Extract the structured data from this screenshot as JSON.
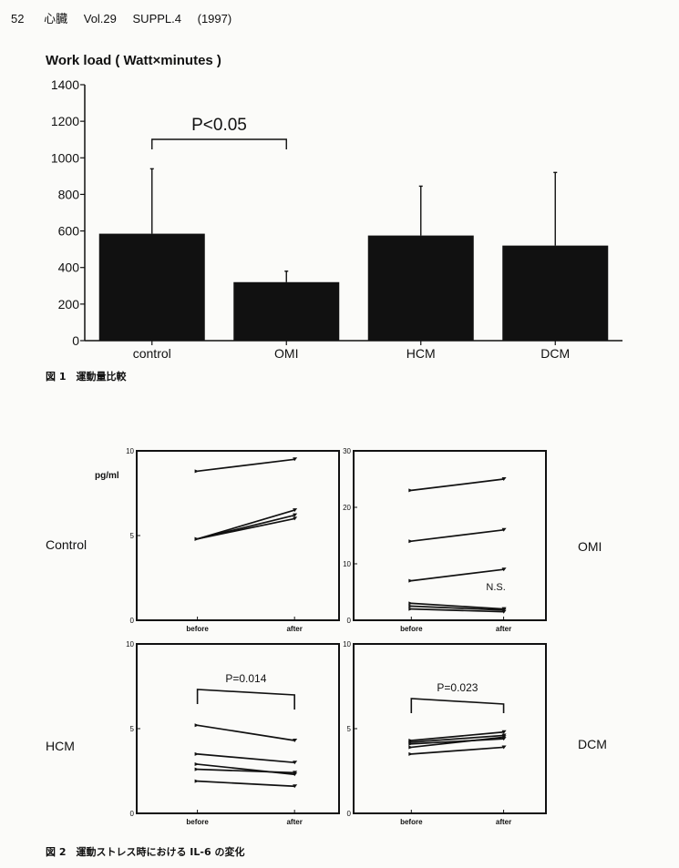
{
  "header": {
    "page": "52",
    "journal": "心臓",
    "volume": "Vol.29",
    "suppl": "SUPPL.4",
    "year": "(1997)"
  },
  "fig1": {
    "caption": "図 1　運動量比較",
    "chart_data": {
      "type": "bar",
      "ylabel": "Work load ( Watt×minutes )",
      "ylim": [
        0,
        1400
      ],
      "yticks": [
        "0",
        "200",
        "400",
        "600",
        "800",
        "1000",
        "1200",
        "1400"
      ],
      "categories": [
        "control",
        "OMI",
        "HCM",
        "DCM"
      ],
      "values": [
        585,
        320,
        575,
        520
      ],
      "error_upper": [
        940,
        380,
        845,
        920
      ],
      "significance": {
        "text": "P<0.05",
        "between": [
          "control",
          "OMI"
        ]
      }
    }
  },
  "fig2": {
    "caption": "図 2　運動ストレス時における IL-6 の変化",
    "unit": "pg/ml",
    "chart_data": [
      {
        "type": "line",
        "name": "Control",
        "x": [
          "before",
          "after"
        ],
        "ylim": [
          0,
          10
        ],
        "yticks": [
          "0",
          "5",
          "10"
        ],
        "series": [
          {
            "values": [
              8.8,
              9.5
            ]
          },
          {
            "values": [
              4.8,
              6.5
            ]
          },
          {
            "values": [
              4.8,
              6.2
            ]
          },
          {
            "values": [
              4.8,
              6.0
            ]
          }
        ],
        "annotation": ""
      },
      {
        "type": "line",
        "name": "OMI",
        "x": [
          "before",
          "after"
        ],
        "ylim": [
          0,
          30
        ],
        "yticks": [
          "0",
          "10",
          "20",
          "30"
        ],
        "series": [
          {
            "values": [
              23,
              25
            ]
          },
          {
            "values": [
              14,
              16
            ]
          },
          {
            "values": [
              7,
              9
            ]
          },
          {
            "values": [
              3,
              2
            ]
          },
          {
            "values": [
              2.5,
              1.8
            ]
          },
          {
            "values": [
              2,
              1.5
            ]
          }
        ],
        "annotation": "N.S."
      },
      {
        "type": "line",
        "name": "HCM",
        "x": [
          "before",
          "after"
        ],
        "ylim": [
          0,
          10
        ],
        "yticks": [
          "0",
          "5",
          "10"
        ],
        "series": [
          {
            "values": [
              5.2,
              4.3
            ]
          },
          {
            "values": [
              3.5,
              3.0
            ]
          },
          {
            "values": [
              2.9,
              2.3
            ]
          },
          {
            "values": [
              2.6,
              2.4
            ]
          },
          {
            "values": [
              1.9,
              1.6
            ]
          }
        ],
        "annotation": "P=0.014"
      },
      {
        "type": "line",
        "name": "DCM",
        "x": [
          "before",
          "after"
        ],
        "ylim": [
          0,
          10
        ],
        "yticks": [
          "0",
          "5",
          "10"
        ],
        "series": [
          {
            "values": [
              4.3,
              4.8
            ]
          },
          {
            "values": [
              4.2,
              4.6
            ]
          },
          {
            "values": [
              4.1,
              4.4
            ]
          },
          {
            "values": [
              3.9,
              4.5
            ]
          },
          {
            "values": [
              3.5,
              3.9
            ]
          }
        ],
        "annotation": "P=0.023"
      }
    ]
  }
}
